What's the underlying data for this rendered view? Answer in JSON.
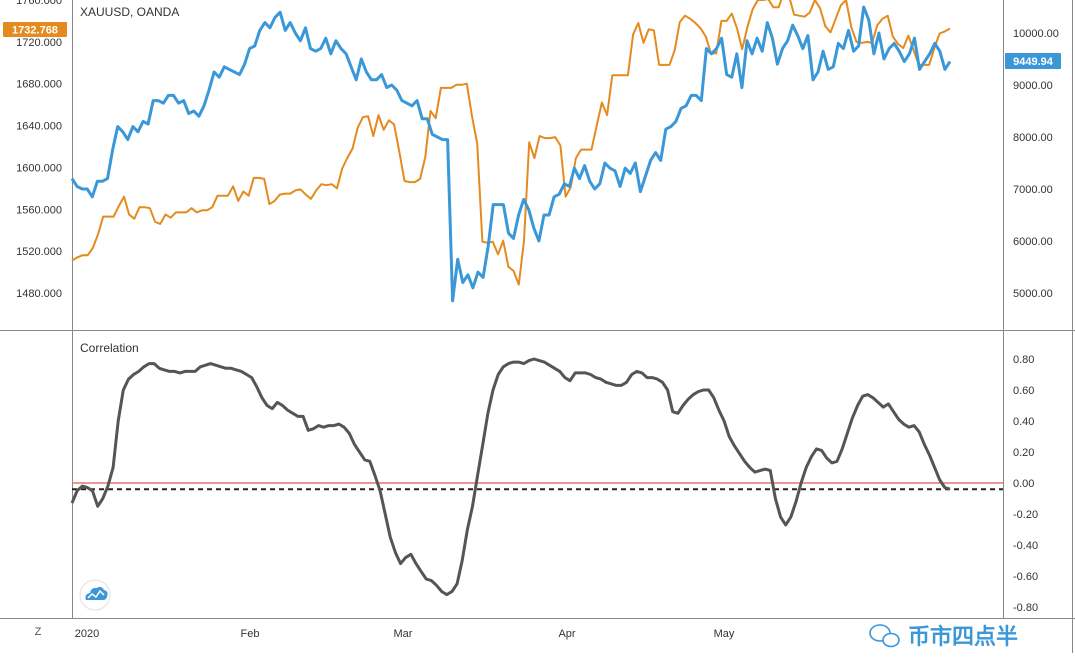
{
  "colors": {
    "xauusd": "#e58a1f",
    "btc": "#3a98d8",
    "correlation": "#555555",
    "zero_line": "#e57373",
    "current_value_line": "#222222",
    "grid_border": "#888888",
    "watermark": "#3a98d8"
  },
  "top_pane": {
    "symbol_label": "XAUUSD, OANDA",
    "left_badge": "1732.768",
    "right_badge": "9449.94"
  },
  "bottom_pane": {
    "indicator_label": "Correlation"
  },
  "footer": {
    "timezone_button": "Z",
    "watermark_text": "币市四点半"
  },
  "icons": {
    "tradingview_logo": "cloud-chart-icon",
    "wechat_logo": "wechat-icon"
  },
  "chart_data": [
    {
      "type": "line",
      "pane": "price",
      "series": [
        {
          "name": "XAUUSD, OANDA",
          "axis": "left",
          "values": [
            1511,
            1514,
            1516,
            1516,
            1523,
            1536,
            1553,
            1553,
            1553,
            1563,
            1572,
            1555,
            1551,
            1562,
            1562,
            1561,
            1548,
            1546,
            1555,
            1552,
            1557,
            1557,
            1557,
            1561,
            1557,
            1559,
            1559,
            1562,
            1573,
            1573,
            1573,
            1582,
            1568,
            1577,
            1573,
            1590,
            1590,
            1589,
            1565,
            1568,
            1574,
            1575,
            1575,
            1578,
            1579,
            1574,
            1570,
            1578,
            1584,
            1583,
            1584,
            1580,
            1599,
            1609,
            1618,
            1638,
            1648,
            1649,
            1630,
            1650,
            1636,
            1645,
            1641,
            1615,
            1587,
            1586,
            1586,
            1589,
            1610,
            1654,
            1647,
            1676,
            1676,
            1676,
            1679,
            1679,
            1680,
            1649,
            1623,
            1529,
            1528,
            1529,
            1517,
            1530,
            1505,
            1501,
            1488,
            1530,
            1624,
            1609,
            1630,
            1628,
            1628,
            1629,
            1621,
            1572,
            1581,
            1609,
            1617,
            1617,
            1617,
            1640,
            1662,
            1650,
            1688,
            1688,
            1688,
            1688,
            1727,
            1738,
            1719,
            1732,
            1731,
            1698,
            1698,
            1698,
            1712,
            1739,
            1745,
            1742,
            1738,
            1733,
            1725,
            1709,
            1709,
            1740,
            1740,
            1747,
            1733,
            1713,
            1734,
            1751,
            1760,
            1760,
            1761,
            1753,
            1753,
            1767,
            1764,
            1746,
            1745,
            1744,
            1748,
            1760,
            1752,
            1735,
            1729,
            1742,
            1755,
            1760,
            1734,
            1720,
            1719,
            1720,
            1719,
            1736,
            1742,
            1745,
            1725,
            1718,
            1714,
            1726,
            1712,
            1698,
            1698,
            1698,
            1714,
            1728,
            1730,
            1732.768
          ]
        },
        {
          "name": "BTC",
          "axis": "right",
          "values": [
            7200,
            7050,
            7000,
            7000,
            6850,
            7150,
            7150,
            7200,
            7750,
            8200,
            8100,
            7950,
            8200,
            8100,
            8300,
            8250,
            8700,
            8700,
            8650,
            8800,
            8800,
            8650,
            8700,
            8450,
            8500,
            8400,
            8600,
            8900,
            9250,
            9150,
            9350,
            9300,
            9250,
            9200,
            9400,
            9700,
            9750,
            10050,
            10200,
            10100,
            10300,
            10400,
            10050,
            10200,
            10000,
            9850,
            10100,
            9700,
            9650,
            9700,
            9900,
            9600,
            9850,
            9700,
            9600,
            9350,
            9100,
            9500,
            9250,
            9100,
            9100,
            9200,
            8950,
            9000,
            8900,
            8700,
            8650,
            8600,
            8700,
            8350,
            8350,
            8050,
            8000,
            7950,
            7950,
            4850,
            5650,
            5200,
            5350,
            5100,
            5400,
            5300,
            5900,
            6700,
            6700,
            6700,
            6150,
            6050,
            6500,
            6800,
            6600,
            6250,
            6000,
            6500,
            6500,
            6850,
            6900,
            7100,
            7050,
            7400,
            7200,
            7450,
            7150,
            7000,
            7100,
            7500,
            7400,
            7350,
            7050,
            7400,
            7300,
            7500,
            6950,
            7250,
            7550,
            7700,
            7550,
            8150,
            8200,
            8300,
            8550,
            8600,
            8800,
            8800,
            8700,
            9700,
            9600,
            9700,
            9900,
            9200,
            9150,
            9600,
            8950,
            9850,
            9600,
            9900,
            9650,
            10200,
            9900,
            9400,
            9700,
            9850,
            10150,
            9950,
            9700,
            9950,
            9100,
            9250,
            9650,
            9300,
            9350,
            9800,
            9700,
            10050,
            9650,
            9750,
            10500,
            10250,
            9600,
            10000,
            9500,
            9700,
            9800,
            9650,
            9450,
            9600,
            9900,
            9300,
            9450,
            9600,
            9800,
            9650,
            9300,
            9449.94
          ]
        }
      ],
      "y_left": {
        "ticks": [
          "1480.000",
          "1520.000",
          "1560.000",
          "1600.000",
          "1640.000",
          "1680.000",
          "1720.000",
          "1760.000"
        ]
      },
      "y_right": {
        "ticks": [
          "5000.00",
          "6000.00",
          "7000.00",
          "8000.00",
          "9000.00",
          "10000.00"
        ]
      },
      "x_ticks": [
        "2020",
        "Feb",
        "Mar",
        "Apr",
        "May"
      ]
    },
    {
      "type": "line",
      "pane": "indicator",
      "series": [
        {
          "name": "Correlation",
          "values": [
            -0.13,
            -0.05,
            -0.02,
            -0.03,
            -0.05,
            -0.15,
            -0.1,
            -0.02,
            0.1,
            0.4,
            0.6,
            0.67,
            0.7,
            0.72,
            0.75,
            0.77,
            0.77,
            0.74,
            0.73,
            0.72,
            0.72,
            0.71,
            0.72,
            0.72,
            0.72,
            0.75,
            0.76,
            0.77,
            0.76,
            0.75,
            0.74,
            0.74,
            0.73,
            0.72,
            0.7,
            0.68,
            0.62,
            0.55,
            0.5,
            0.48,
            0.52,
            0.5,
            0.47,
            0.45,
            0.43,
            0.43,
            0.34,
            0.35,
            0.37,
            0.36,
            0.37,
            0.37,
            0.38,
            0.36,
            0.32,
            0.25,
            0.2,
            0.15,
            0.14,
            0.05,
            -0.05,
            -0.2,
            -0.35,
            -0.45,
            -0.52,
            -0.48,
            -0.46,
            -0.52,
            -0.57,
            -0.62,
            -0.63,
            -0.66,
            -0.7,
            -0.72,
            -0.7,
            -0.65,
            -0.5,
            -0.3,
            -0.15,
            0.05,
            0.25,
            0.45,
            0.6,
            0.7,
            0.75,
            0.77,
            0.78,
            0.78,
            0.77,
            0.79,
            0.8,
            0.79,
            0.78,
            0.76,
            0.74,
            0.72,
            0.68,
            0.66,
            0.71,
            0.71,
            0.71,
            0.7,
            0.68,
            0.67,
            0.65,
            0.64,
            0.63,
            0.63,
            0.65,
            0.7,
            0.72,
            0.71,
            0.68,
            0.68,
            0.67,
            0.65,
            0.6,
            0.46,
            0.45,
            0.5,
            0.54,
            0.57,
            0.59,
            0.6,
            0.6,
            0.55,
            0.47,
            0.4,
            0.3,
            0.24,
            0.19,
            0.14,
            0.1,
            0.07,
            0.08,
            0.09,
            0.08,
            -0.1,
            -0.22,
            -0.27,
            -0.22,
            -0.12,
            0.0,
            0.1,
            0.17,
            0.22,
            0.21,
            0.16,
            0.13,
            0.14,
            0.22,
            0.32,
            0.42,
            0.5,
            0.56,
            0.57,
            0.55,
            0.52,
            0.49,
            0.51,
            0.46,
            0.41,
            0.38,
            0.36,
            0.37,
            0.33,
            0.25,
            0.18,
            0.1,
            0.02,
            -0.03,
            -0.04
          ]
        }
      ],
      "y_ticks": [
        "0.80",
        "0.60",
        "0.40",
        "0.20",
        "0.00",
        "-0.20",
        "-0.40",
        "-0.60",
        "-0.80"
      ],
      "reference_lines": [
        0,
        -0.04
      ]
    }
  ]
}
